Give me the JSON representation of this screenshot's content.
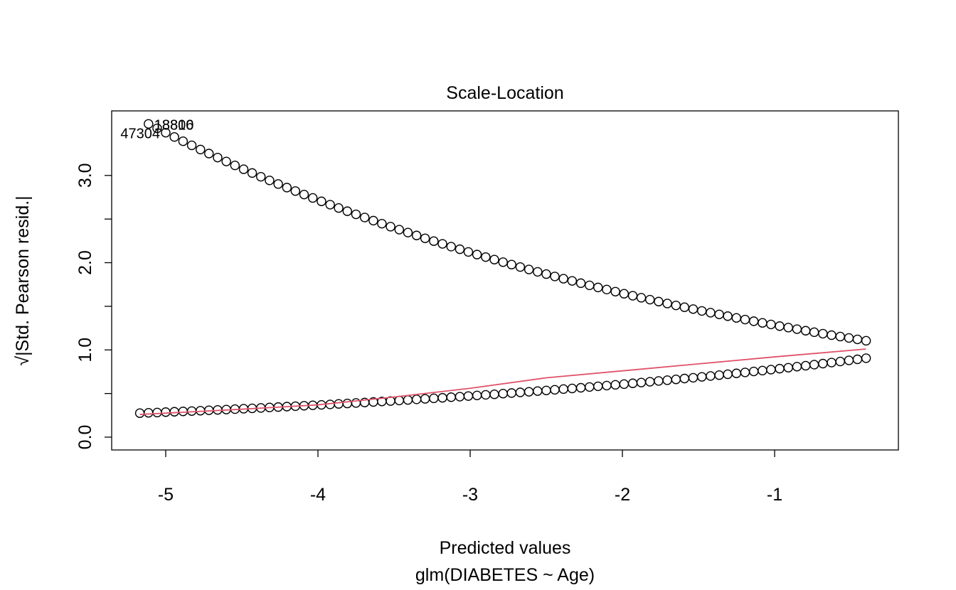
{
  "chart_data": {
    "type": "scatter",
    "title": "Scale-Location",
    "x_label": "Predicted values",
    "subtitle": "glm(DIABETES ~ Age)",
    "y_label": "√|Std. Pearson resid.|",
    "xlim": [
      -5.355,
      -0.187
    ],
    "ylim": [
      -0.147,
      3.74
    ],
    "xticks": [
      -5,
      -4,
      -3,
      -2,
      -1
    ],
    "yticks": [
      {
        "value": 0,
        "label": "0.0"
      },
      {
        "value": 0.5,
        "label": null
      },
      {
        "value": 1,
        "label": "1.0"
      },
      {
        "value": 1.5,
        "label": null
      },
      {
        "value": 2,
        "label": "2.0"
      },
      {
        "value": 2.5,
        "label": null
      },
      {
        "value": 3,
        "label": "3.0"
      }
    ],
    "grid": false,
    "series": [
      {
        "color": "#000000",
        "x": [
          -5.17,
          -5.113,
          -5.056,
          -5.0,
          -4.943,
          -4.886,
          -4.829,
          -4.772,
          -4.716,
          -4.659,
          -4.602,
          -4.545,
          -4.488,
          -4.432,
          -4.375,
          -4.318,
          -4.261,
          -4.204,
          -4.148,
          -4.091,
          -4.034,
          -3.977,
          -3.92,
          -3.864,
          -3.807,
          -3.75,
          -3.693,
          -3.636,
          -3.58,
          -3.523,
          -3.466,
          -3.409,
          -3.352,
          -3.296,
          -3.239,
          -3.182,
          -3.125,
          -3.068,
          -3.012,
          -2.955,
          -2.898,
          -2.841,
          -2.784,
          -2.728,
          -2.671,
          -2.614,
          -2.557,
          -2.5,
          -2.444,
          -2.387,
          -2.33,
          -2.273,
          -2.216,
          -2.16,
          -2.103,
          -2.046,
          -1.989,
          -1.932,
          -1.876,
          -1.819,
          -1.762,
          -1.705,
          -1.648,
          -1.592,
          -1.535,
          -1.478,
          -1.421,
          -1.364,
          -1.308,
          -1.251,
          -1.194,
          -1.137,
          -1.08,
          -1.024,
          -0.967,
          -0.91,
          -0.853,
          -0.796,
          -0.74,
          -0.683,
          -0.626,
          -0.569,
          -0.512,
          -0.456,
          -0.399
        ],
        "values": [
          0.275,
          0.279,
          0.282,
          0.287,
          0.291,
          0.295,
          0.299,
          0.303,
          0.308,
          0.312,
          0.316,
          0.321,
          0.326,
          0.33,
          0.335,
          0.34,
          0.345,
          0.35,
          0.355,
          0.36,
          0.365,
          0.37,
          0.375,
          0.381,
          0.386,
          0.392,
          0.397,
          0.403,
          0.409,
          0.414,
          0.42,
          0.426,
          0.433,
          0.439,
          0.445,
          0.451,
          0.458,
          0.464,
          0.471,
          0.478,
          0.485,
          0.491,
          0.499,
          0.506,
          0.513,
          0.52,
          0.528,
          0.535,
          0.543,
          0.551,
          0.558,
          0.566,
          0.575,
          0.583,
          0.591,
          0.6,
          0.608,
          0.617,
          0.626,
          0.635,
          0.644,
          0.653,
          0.662,
          0.672,
          0.681,
          0.691,
          0.701,
          0.711,
          0.721,
          0.731,
          0.742,
          0.753,
          0.763,
          0.774,
          0.785,
          0.796,
          0.808,
          0.819,
          0.831,
          0.843,
          0.855,
          0.867,
          0.88,
          0.892,
          0.905
        ]
      },
      {
        "color": "#000000",
        "x": [
          -5.113,
          -5.056,
          -5.0,
          -4.943,
          -4.886,
          -4.829,
          -4.772,
          -4.716,
          -4.659,
          -4.602,
          -4.545,
          -4.488,
          -4.432,
          -4.375,
          -4.318,
          -4.261,
          -4.204,
          -4.148,
          -4.091,
          -4.034,
          -3.977,
          -3.92,
          -3.864,
          -3.807,
          -3.75,
          -3.693,
          -3.636,
          -3.58,
          -3.523,
          -3.466,
          -3.409,
          -3.352,
          -3.296,
          -3.239,
          -3.182,
          -3.125,
          -3.068,
          -3.012,
          -2.955,
          -2.898,
          -2.841,
          -2.784,
          -2.728,
          -2.671,
          -2.614,
          -2.557,
          -2.5,
          -2.444,
          -2.387,
          -2.33,
          -2.273,
          -2.216,
          -2.16,
          -2.103,
          -2.046,
          -1.989,
          -1.932,
          -1.876,
          -1.819,
          -1.762,
          -1.705,
          -1.648,
          -1.592,
          -1.535,
          -1.478,
          -1.421,
          -1.364,
          -1.308,
          -1.251,
          -1.194,
          -1.137,
          -1.08,
          -1.024,
          -0.967,
          -0.91,
          -0.853,
          -0.796,
          -0.74,
          -0.683,
          -0.626,
          -0.569,
          -0.512,
          -0.456,
          -0.399
        ],
        "values": [
          3.591,
          3.54,
          3.49,
          3.441,
          3.392,
          3.345,
          3.297,
          3.251,
          3.205,
          3.16,
          3.115,
          3.071,
          3.028,
          2.985,
          2.943,
          2.902,
          2.861,
          2.821,
          2.781,
          2.742,
          2.703,
          2.665,
          2.627,
          2.59,
          2.554,
          2.518,
          2.482,
          2.447,
          2.413,
          2.379,
          2.345,
          2.312,
          2.279,
          2.247,
          2.216,
          2.184,
          2.154,
          2.123,
          2.093,
          2.064,
          2.035,
          2.006,
          1.978,
          1.95,
          1.922,
          1.895,
          1.869,
          1.842,
          1.816,
          1.791,
          1.765,
          1.74,
          1.716,
          1.692,
          1.668,
          1.644,
          1.621,
          1.598,
          1.576,
          1.554,
          1.532,
          1.51,
          1.489,
          1.468,
          1.447,
          1.427,
          1.407,
          1.387,
          1.367,
          1.348,
          1.329,
          1.31,
          1.292,
          1.273,
          1.256,
          1.238,
          1.22,
          1.203,
          1.186,
          1.169,
          1.153,
          1.137,
          1.121,
          1.105
        ]
      }
    ],
    "smooth": {
      "color": "#DF536B",
      "x": [
        -5.17,
        -4.5,
        -4,
        -3.5,
        -3,
        -2.5,
        -2,
        -1.5,
        -1,
        -0.4
      ],
      "values": [
        0.26,
        0.32,
        0.37,
        0.46,
        0.56,
        0.68,
        0.76,
        0.84,
        0.92,
        1.01
      ]
    },
    "annotations": [
      {
        "text": "18810",
        "x": -5.113,
        "y": 3.591,
        "position": "right"
      },
      {
        "text": "18806",
        "x": -5.113,
        "y": 3.591,
        "position": "right"
      },
      {
        "text": "47304",
        "x": -5.0,
        "y": 3.49,
        "position": "left"
      }
    ]
  }
}
